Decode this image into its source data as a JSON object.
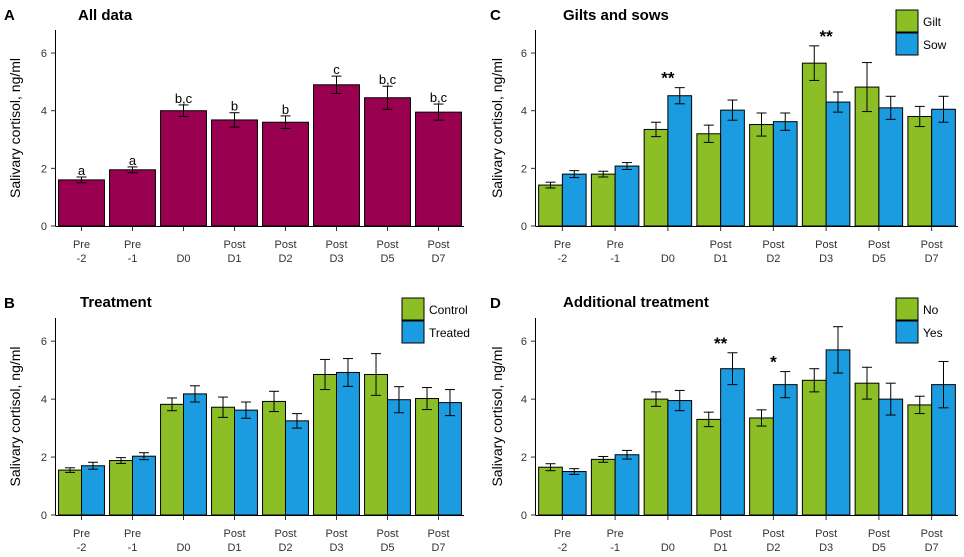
{
  "colors": {
    "maroon": "#990050",
    "green": "#8cbf26",
    "blue": "#1b9be0"
  },
  "chart_data": [
    {
      "panel": "A",
      "type": "bar",
      "title": "All data",
      "ylabel": "Salivary cortisol, ng/ml",
      "ylim": [
        0,
        6.8
      ],
      "yticks": [
        "0",
        "2",
        "4",
        "6"
      ],
      "categories": [
        [
          "Pre",
          "-2"
        ],
        [
          "Pre",
          "-1"
        ],
        [
          "",
          "D0"
        ],
        [
          "Post",
          "D1"
        ],
        [
          "Post",
          "D2"
        ],
        [
          "Post",
          "D3"
        ],
        [
          "Post",
          "D5"
        ],
        [
          "Post",
          "D7"
        ]
      ],
      "series": [
        {
          "name": "All",
          "color": "#990050",
          "values": [
            1.6,
            1.95,
            4.0,
            3.68,
            3.6,
            4.9,
            4.45,
            3.95
          ],
          "errors": [
            0.1,
            0.1,
            0.2,
            0.25,
            0.22,
            0.3,
            0.4,
            0.28
          ]
        }
      ],
      "annotations": [
        "a",
        "a",
        "b,c",
        "b",
        "b",
        "c",
        "b,c",
        "b,c"
      ]
    },
    {
      "panel": "B",
      "type": "bar",
      "title": "Treatment",
      "ylabel": "Salivary cortisol, ng/ml",
      "ylim": [
        0,
        6.8
      ],
      "yticks": [
        "0",
        "2",
        "4",
        "6"
      ],
      "categories": [
        [
          "Pre",
          "-2"
        ],
        [
          "Pre",
          "-1"
        ],
        [
          "",
          "D0"
        ],
        [
          "Post",
          "D1"
        ],
        [
          "Post",
          "D2"
        ],
        [
          "Post",
          "D3"
        ],
        [
          "Post",
          "D5"
        ],
        [
          "Post",
          "D7"
        ]
      ],
      "series": [
        {
          "name": "Control",
          "color": "#8cbf26",
          "values": [
            1.55,
            1.88,
            3.82,
            3.72,
            3.92,
            4.85,
            4.85,
            4.02
          ],
          "errors": [
            0.08,
            0.1,
            0.22,
            0.35,
            0.35,
            0.52,
            0.72,
            0.38
          ]
        },
        {
          "name": "Treated",
          "color": "#1b9be0",
          "values": [
            1.7,
            2.03,
            4.18,
            3.62,
            3.25,
            4.92,
            3.98,
            3.88
          ],
          "errors": [
            0.12,
            0.12,
            0.28,
            0.28,
            0.25,
            0.48,
            0.45,
            0.45
          ]
        }
      ],
      "annotations": []
    },
    {
      "panel": "C",
      "type": "bar",
      "title": "Gilts and sows",
      "ylabel": "Salivary cortisol, ng/ml",
      "ylim": [
        0,
        6.8
      ],
      "yticks": [
        "0",
        "2",
        "4",
        "6"
      ],
      "categories": [
        [
          "Pre",
          "-2"
        ],
        [
          "Pre",
          "-1"
        ],
        [
          "",
          "D0"
        ],
        [
          "Post",
          "D1"
        ],
        [
          "Post",
          "D2"
        ],
        [
          "Post",
          "D3"
        ],
        [
          "Post",
          "D5"
        ],
        [
          "Post",
          "D7"
        ]
      ],
      "series": [
        {
          "name": "Gilt",
          "color": "#8cbf26",
          "values": [
            1.42,
            1.8,
            3.35,
            3.2,
            3.52,
            5.65,
            4.82,
            3.8
          ],
          "errors": [
            0.1,
            0.1,
            0.25,
            0.3,
            0.4,
            0.6,
            0.85,
            0.35
          ]
        },
        {
          "name": "Sow",
          "color": "#1b9be0",
          "values": [
            1.8,
            2.08,
            4.52,
            4.02,
            3.62,
            4.3,
            4.1,
            4.05
          ],
          "errors": [
            0.12,
            0.12,
            0.28,
            0.35,
            0.3,
            0.35,
            0.4,
            0.45
          ]
        }
      ],
      "annotations": [
        "",
        "",
        "**",
        "",
        "",
        "**",
        "",
        ""
      ]
    },
    {
      "panel": "D",
      "type": "bar",
      "title": "Additional treatment",
      "ylabel": "Salivary cortisol, ng/ml",
      "ylim": [
        0,
        6.8
      ],
      "yticks": [
        "0",
        "2",
        "4",
        "6"
      ],
      "categories": [
        [
          "Pre",
          "-2"
        ],
        [
          "Pre",
          "-1"
        ],
        [
          "",
          "D0"
        ],
        [
          "Post",
          "D1"
        ],
        [
          "Post",
          "D2"
        ],
        [
          "Post",
          "D3"
        ],
        [
          "Post",
          "D5"
        ],
        [
          "Post",
          "D7"
        ]
      ],
      "series": [
        {
          "name": "No",
          "color": "#8cbf26",
          "values": [
            1.65,
            1.92,
            4.0,
            3.3,
            3.35,
            4.65,
            4.55,
            3.8
          ],
          "errors": [
            0.12,
            0.1,
            0.25,
            0.25,
            0.28,
            0.4,
            0.55,
            0.3
          ]
        },
        {
          "name": "Yes",
          "color": "#1b9be0",
          "values": [
            1.5,
            2.08,
            3.95,
            5.05,
            4.5,
            5.7,
            4.0,
            4.5
          ],
          "errors": [
            0.1,
            0.15,
            0.35,
            0.55,
            0.45,
            0.8,
            0.55,
            0.8
          ]
        }
      ],
      "annotations": [
        "",
        "",
        "",
        "**",
        "*",
        "",
        "",
        ""
      ]
    }
  ]
}
